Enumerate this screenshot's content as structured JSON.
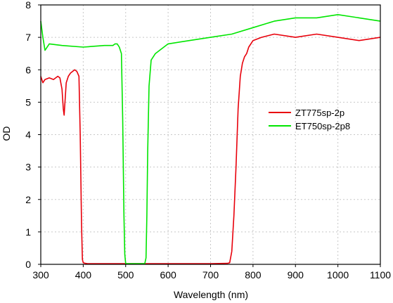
{
  "chart_data": {
    "type": "line",
    "xlabel": "Wavelength (nm)",
    "ylabel": "OD",
    "xlim": [
      300,
      1100
    ],
    "ylim": [
      0,
      8
    ],
    "x_ticks": [
      300,
      400,
      500,
      600,
      700,
      800,
      900,
      1000,
      1100
    ],
    "y_ticks": [
      0,
      1,
      2,
      3,
      4,
      5,
      6,
      7,
      8
    ],
    "grid": true,
    "legend_position": "right",
    "series": [
      {
        "name": "ZT775sp-2p",
        "color": "#e8000b",
        "x": [
          300,
          305,
          310,
          320,
          330,
          340,
          345,
          350,
          353,
          355,
          357,
          360,
          365,
          370,
          380,
          385,
          390,
          393,
          396,
          398,
          400,
          405,
          410,
          450,
          500,
          550,
          600,
          650,
          700,
          740,
          745,
          750,
          755,
          760,
          765,
          770,
          775,
          780,
          785,
          790,
          800,
          820,
          850,
          900,
          950,
          1000,
          1050,
          1100
        ],
        "y": [
          5.8,
          5.6,
          5.7,
          5.75,
          5.7,
          5.8,
          5.75,
          5.4,
          4.8,
          4.6,
          5.0,
          5.6,
          5.8,
          5.9,
          6.0,
          5.95,
          5.8,
          4.0,
          1.2,
          0.15,
          0.05,
          0.03,
          0.02,
          0.02,
          0.02,
          0.02,
          0.02,
          0.02,
          0.02,
          0.03,
          0.05,
          0.4,
          1.5,
          3.0,
          4.8,
          5.8,
          6.2,
          6.4,
          6.5,
          6.7,
          6.9,
          7.0,
          7.1,
          7.0,
          7.1,
          7.0,
          6.9,
          7.0
        ]
      },
      {
        "name": "ET750sp-2p8",
        "color": "#00e600",
        "x": [
          300,
          305,
          310,
          320,
          350,
          400,
          450,
          470,
          475,
          480,
          485,
          490,
          493,
          496,
          498,
          500,
          520,
          545,
          548,
          550,
          552,
          555,
          560,
          570,
          580,
          600,
          650,
          700,
          750,
          800,
          850,
          900,
          950,
          1000,
          1050,
          1100
        ],
        "y": [
          7.5,
          7.0,
          6.6,
          6.8,
          6.75,
          6.7,
          6.75,
          6.75,
          6.8,
          6.8,
          6.7,
          6.5,
          4.5,
          1.5,
          0.3,
          0.02,
          0.02,
          0.02,
          0.2,
          1.5,
          3.5,
          5.5,
          6.3,
          6.5,
          6.6,
          6.8,
          6.9,
          7.0,
          7.1,
          7.3,
          7.5,
          7.6,
          7.6,
          7.7,
          7.6,
          7.5
        ]
      }
    ]
  }
}
